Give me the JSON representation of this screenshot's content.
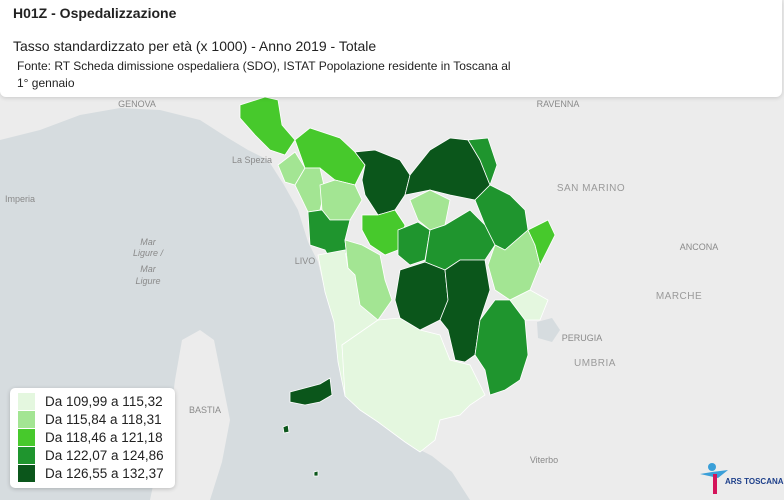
{
  "header": {
    "title": "H01Z - Ospedalizzazione",
    "subtitle": "Tasso standardizzato per età (x 1000) - Anno 2019 - Totale",
    "source": "Fonte: RT Scheda dimissione ospedaliera (SDO), ISTAT Popolazione residente in Toscana al 1° gennaio"
  },
  "legend": {
    "items": [
      {
        "label": "Da 109,99 a 115,32",
        "color": "#e4f7df"
      },
      {
        "label": "Da 115,84 a 118,31",
        "color": "#a3e593"
      },
      {
        "label": "Da 118,46 a 121,18",
        "color": "#47c92c"
      },
      {
        "label": "Da 122,07 a 124,86",
        "color": "#1f952e"
      },
      {
        "label": "Da 126,55 a 132,37",
        "color": "#0b561b"
      }
    ]
  },
  "map_labels": [
    "GENOVA",
    "RAVENNA",
    "La Spezia",
    "SAN MARINO",
    "Imperia",
    "Mar",
    "Ligure /",
    "Mar",
    "Ligure",
    "LIVO",
    "ANCONA",
    "MARCHE",
    "PERUGIA",
    "UMBRIA",
    "BASTIA",
    "Viterbo"
  ],
  "logo": {
    "name": "ARS TOSCANA"
  }
}
